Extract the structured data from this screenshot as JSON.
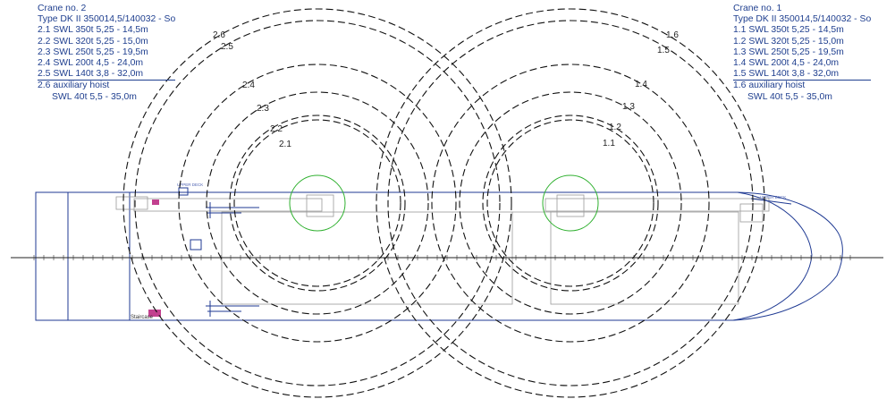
{
  "crane2": {
    "title": "Crane no. 2",
    "type": "Type DK II 350014,5/140032 - So",
    "entries": [
      "2.1 SWL 350t  5,25 - 14,5m",
      "2.2 SWL 320t  5,25 - 15,0m",
      "2.3 SWL 250t  5,25 - 19,5m",
      "2.4 SWL 200t  4,5 - 24,0m",
      "2.5 SWL 140t  3,8 - 32,0m"
    ],
    "aux_title": "2.6 auxiliary hoist",
    "aux_swl": "SWL 40t  5,5 - 35,0m",
    "ring_labels": [
      "2.1",
      "2.2",
      "2.3",
      "2.4",
      "2.5",
      "2.6"
    ]
  },
  "crane1": {
    "title": "Crane no. 1",
    "type": "Type DK II 350014,5/140032 - So",
    "entries": [
      "1.1 SWL 350t  5,25 - 14,5m",
      "1.2 SWL 320t  5,25 - 15,0m",
      "1.3 SWL 250t  5,25 - 19,5m",
      "1.4 SWL 200t  4,5 - 24,0m",
      "1.5 SWL 140t  3,8 - 32,0m"
    ],
    "aux_title": "1.6 auxiliary hoist",
    "aux_swl": "SWL 40t  5,5 - 35,0m",
    "ring_labels": [
      "1.1",
      "1.2",
      "1.3",
      "1.4",
      "1.5",
      "1.6"
    ]
  },
  "deck_labels": {
    "upper_deck_left": "UPPER DECK",
    "upper_deck_right": "UPPER DECK",
    "staircase": "Staircase"
  },
  "colors": {
    "hull": "#1f3a93",
    "legend_text": "#1f3f8f",
    "slew_circle": "#2fb02f",
    "accent": "#c2408f",
    "dashed": "#111111"
  }
}
